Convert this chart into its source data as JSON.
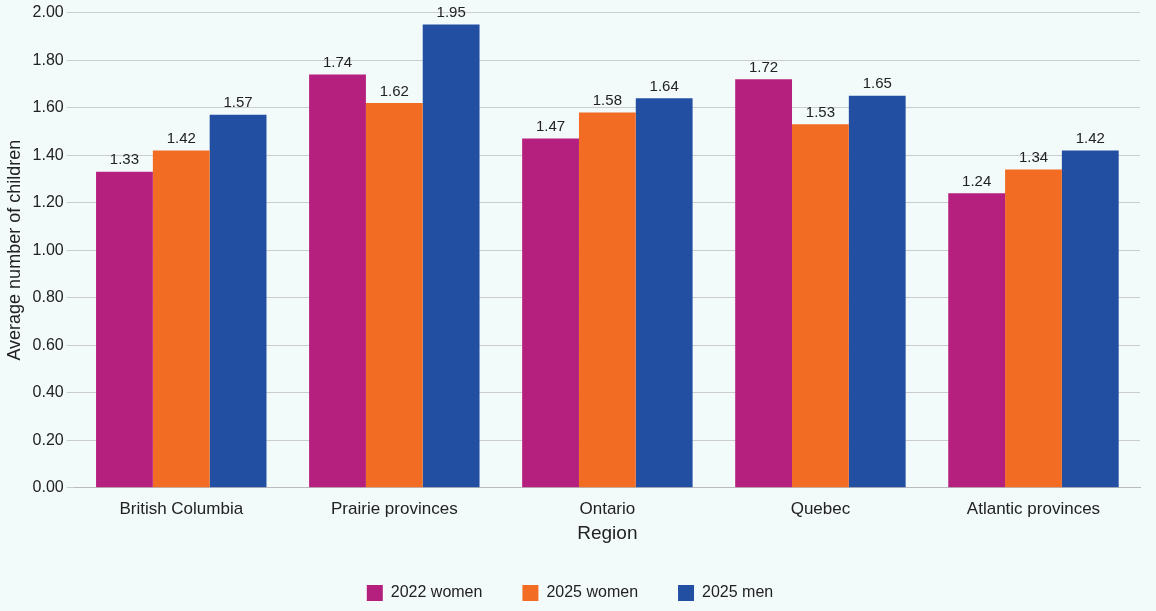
{
  "chart_data": {
    "type": "bar",
    "xlabel": "Region",
    "ylabel": "Average number of children",
    "categories": [
      "British Columbia",
      "Prairie provinces",
      "Ontario",
      "Quebec",
      "Atlantic provinces"
    ],
    "series": [
      {
        "name": "2022 women",
        "color": "#b5207e",
        "values": [
          1.33,
          1.74,
          1.47,
          1.72,
          1.24
        ]
      },
      {
        "name": "2025 women",
        "color": "#f26c24",
        "values": [
          1.42,
          1.62,
          1.58,
          1.53,
          1.34
        ]
      },
      {
        "name": "2025 men",
        "color": "#234fa3",
        "values": [
          1.57,
          1.95,
          1.64,
          1.65,
          1.42
        ]
      }
    ],
    "ylim": [
      0,
      2
    ],
    "yticks": [
      {
        "value": 0,
        "label": "0.00"
      },
      {
        "value": 0.2,
        "label": "0.20"
      },
      {
        "value": 0.4,
        "label": "0.40"
      },
      {
        "value": 0.6,
        "label": "0.60"
      },
      {
        "value": 0.8,
        "label": "0.80"
      },
      {
        "value": 1,
        "label": "1.00"
      },
      {
        "value": 1.2,
        "label": "1.20"
      },
      {
        "value": 1.4,
        "label": "1.40"
      },
      {
        "value": 1.6,
        "label": "1.60"
      },
      {
        "value": 1.8,
        "label": "1.80"
      },
      {
        "value": 2,
        "label": "2.00"
      }
    ],
    "grid": "y",
    "legend": "bottom",
    "data_labels": true
  }
}
